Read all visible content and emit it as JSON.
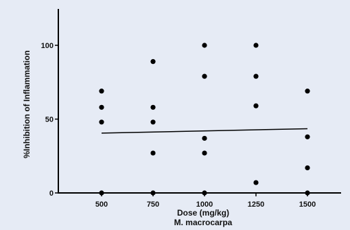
{
  "colors": {
    "background": "#e6ebf5",
    "ink": "#000000"
  },
  "chart_data": {
    "type": "scatter",
    "xlabel": "Dose (mg/kg)",
    "xlabel_sub": "M. macrocarpa",
    "ylabel": "%Inhibition of Inflammation",
    "x_ticks": [
      500,
      750,
      1000,
      1250,
      1500
    ],
    "y_ticks": [
      0,
      50,
      100
    ],
    "xlim": [
      250,
      1850
    ],
    "ylim": [
      0,
      125
    ],
    "grid": false,
    "legend": "none",
    "points": [
      {
        "x": 500,
        "y": 0
      },
      {
        "x": 500,
        "y": 48
      },
      {
        "x": 500,
        "y": 58
      },
      {
        "x": 500,
        "y": 69
      },
      {
        "x": 750,
        "y": 0
      },
      {
        "x": 750,
        "y": 27
      },
      {
        "x": 750,
        "y": 48
      },
      {
        "x": 750,
        "y": 58
      },
      {
        "x": 750,
        "y": 89
      },
      {
        "x": 1000,
        "y": 0
      },
      {
        "x": 1000,
        "y": 27
      },
      {
        "x": 1000,
        "y": 37
      },
      {
        "x": 1000,
        "y": 79
      },
      {
        "x": 1000,
        "y": 100
      },
      {
        "x": 1250,
        "y": 7
      },
      {
        "x": 1250,
        "y": 59
      },
      {
        "x": 1250,
        "y": 79
      },
      {
        "x": 1250,
        "y": 100
      },
      {
        "x": 1500,
        "y": 0
      },
      {
        "x": 1500,
        "y": 17
      },
      {
        "x": 1500,
        "y": 38
      },
      {
        "x": 1500,
        "y": 69
      }
    ],
    "trend_line": {
      "x": [
        500,
        1500
      ],
      "y": [
        40.5,
        43.5
      ]
    }
  }
}
